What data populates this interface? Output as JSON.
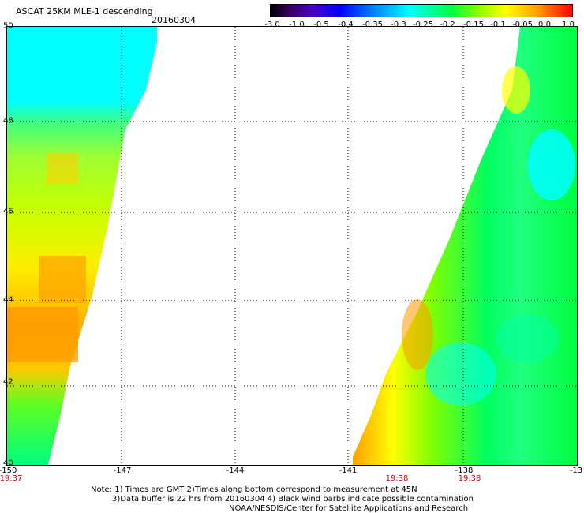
{
  "header": {
    "title": "ASCAT 25KM MLE-1 descending",
    "date": "20160304"
  },
  "colorbar": {
    "labels": [
      "-3.0",
      "-1.0",
      "-0.5",
      "-0.4",
      "-0.35",
      "-0.3",
      "-0.25",
      "-0.2",
      "-0.15",
      "-0.1",
      "-0.05",
      "0.0",
      "1.0"
    ]
  },
  "axes": {
    "lat_labels": [
      "50",
      "48",
      "46",
      "44",
      "42",
      "40"
    ],
    "lon_labels": [
      "-150",
      "-147",
      "-144",
      "-141",
      "-138",
      "-13"
    ]
  },
  "times": {
    "left": "19:37",
    "mid": "19:38",
    "right": "19:38"
  },
  "notes": {
    "line1": "Note: 1) Times are GMT 2)Times along bottom correspond to measurement at 45N",
    "line2": "3)Data buffer is 22 hrs from 20160304 4) Black wind barbs indicate possible contamination",
    "line3": "NOAA/NESDIS/Center for Satellite Applications and Research"
  },
  "colors": {
    "cyan": "#00ffff",
    "green": "#00ff40",
    "yellow": "#ffff00",
    "orange": "#ffa500"
  }
}
